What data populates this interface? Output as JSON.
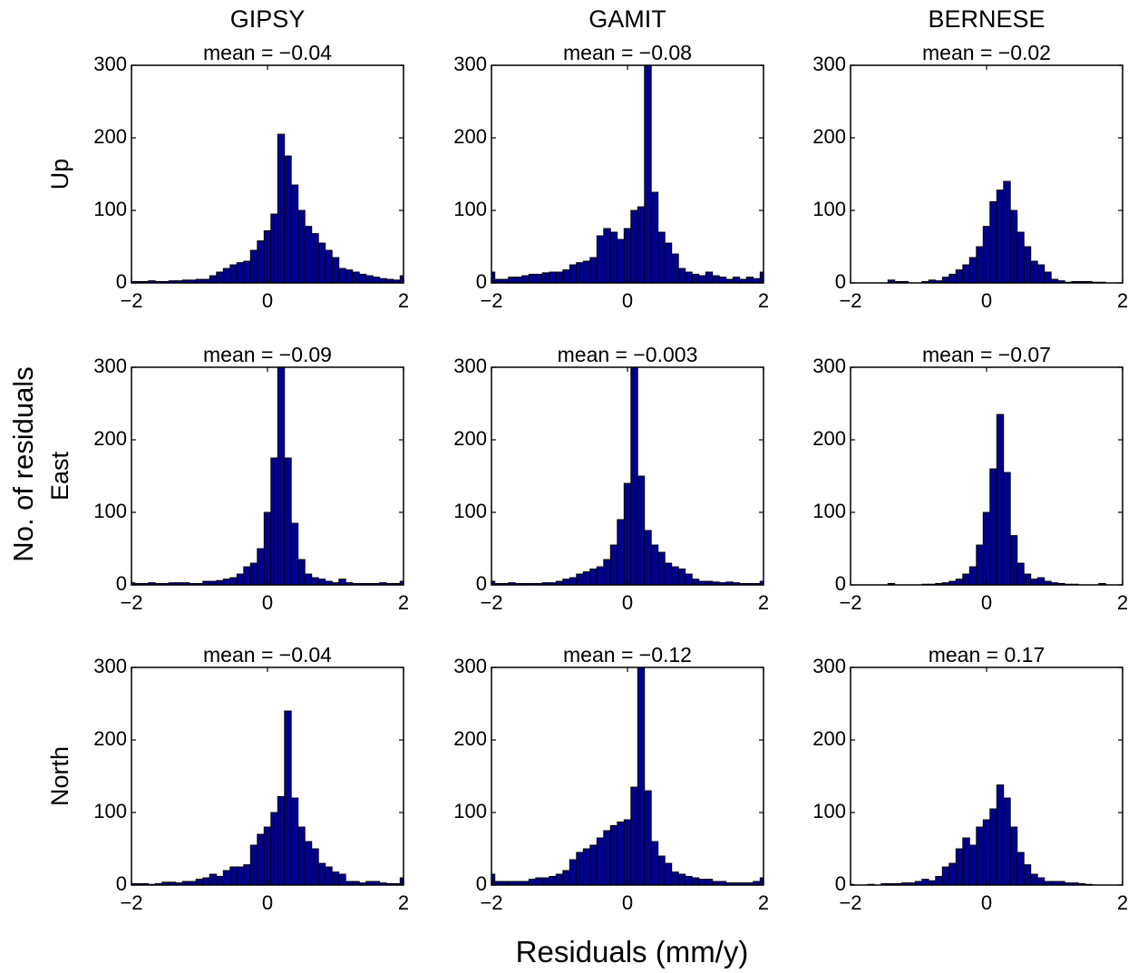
{
  "figure": {
    "column_titles": [
      "GIPSY",
      "GAMIT",
      "BERNESE"
    ],
    "row_labels": [
      "Up",
      "East",
      "North"
    ],
    "ylabel": "No. of residuals",
    "xlabel": "Residuals (mm/y)"
  },
  "colors": {
    "bar_fill": "#00008F",
    "bar_edge": "#000000",
    "axes": "#000000",
    "background": "#ffffff"
  },
  "chart_data": [
    {
      "type": "bar",
      "panel_row": "Up",
      "panel_column": "GIPSY",
      "title": "mean = −0.04",
      "bin_edges_range": [
        -2,
        2
      ],
      "bin_width": 0.1,
      "xlim": [
        -2,
        2
      ],
      "ylim": [
        0,
        300
      ],
      "xticks": [
        -2,
        0,
        2
      ],
      "xtick_labels": [
        "−2",
        "0",
        "2"
      ],
      "yticks": [
        0,
        100,
        200,
        300
      ],
      "values": [
        2,
        2,
        2,
        3,
        2,
        2,
        3,
        3,
        4,
        4,
        5,
        5,
        10,
        15,
        20,
        25,
        28,
        30,
        45,
        58,
        72,
        95,
        205,
        175,
        135,
        100,
        78,
        68,
        55,
        45,
        35,
        20,
        18,
        15,
        12,
        10,
        8,
        6,
        5,
        4,
        10
      ]
    },
    {
      "type": "bar",
      "panel_row": "Up",
      "panel_column": "GAMIT",
      "title": "mean = −0.08",
      "bin_edges_range": [
        -2,
        2
      ],
      "bin_width": 0.1,
      "xlim": [
        -2,
        2
      ],
      "ylim": [
        0,
        300
      ],
      "xticks": [
        -2,
        0,
        2
      ],
      "xtick_labels": [
        "−2",
        "0",
        "2"
      ],
      "yticks": [
        0,
        100,
        200,
        300
      ],
      "values": [
        15,
        5,
        5,
        8,
        8,
        10,
        12,
        12,
        14,
        15,
        15,
        18,
        25,
        28,
        30,
        35,
        65,
        75,
        70,
        60,
        75,
        100,
        105,
        300,
        125,
        70,
        55,
        40,
        20,
        15,
        12,
        10,
        15,
        10,
        8,
        5,
        8,
        5,
        8,
        6,
        15
      ]
    },
    {
      "type": "bar",
      "panel_row": "Up",
      "panel_column": "BERNESE",
      "title": "mean = −0.02",
      "bin_edges_range": [
        -2,
        2
      ],
      "bin_width": 0.1,
      "xlim": [
        -2,
        2
      ],
      "ylim": [
        0,
        300
      ],
      "xticks": [
        -2,
        0,
        2
      ],
      "xtick_labels": [
        "−2",
        "0",
        "2"
      ],
      "yticks": [
        0,
        100,
        200,
        300
      ],
      "values": [
        0,
        0,
        0,
        0,
        0,
        0,
        4,
        2,
        2,
        0,
        0,
        2,
        4,
        3,
        8,
        12,
        18,
        25,
        35,
        50,
        78,
        112,
        128,
        140,
        100,
        70,
        50,
        30,
        25,
        15,
        5,
        3,
        1,
        2,
        2,
        2,
        1,
        1,
        0,
        0,
        0
      ]
    },
    {
      "type": "bar",
      "panel_row": "East",
      "panel_column": "GIPSY",
      "title": "mean = −0.09",
      "bin_edges_range": [
        -2,
        2
      ],
      "bin_width": 0.1,
      "xlim": [
        -2,
        2
      ],
      "ylim": [
        0,
        300
      ],
      "xticks": [
        -2,
        0,
        2
      ],
      "xtick_labels": [
        "−2",
        "0",
        "2"
      ],
      "yticks": [
        0,
        100,
        200,
        300
      ],
      "values": [
        3,
        2,
        2,
        3,
        2,
        2,
        3,
        3,
        3,
        2,
        2,
        5,
        5,
        6,
        8,
        10,
        15,
        25,
        30,
        50,
        100,
        175,
        300,
        175,
        85,
        35,
        15,
        10,
        8,
        5,
        3,
        8,
        3,
        2,
        2,
        2,
        2,
        3,
        2,
        2,
        5
      ]
    },
    {
      "type": "bar",
      "panel_row": "East",
      "panel_column": "GAMIT",
      "title": "mean = −0.003",
      "bin_edges_range": [
        -2,
        2
      ],
      "bin_width": 0.1,
      "xlim": [
        -2,
        2
      ],
      "ylim": [
        0,
        300
      ],
      "xticks": [
        -2,
        0,
        2
      ],
      "xtick_labels": [
        "−2",
        "0",
        "2"
      ],
      "yticks": [
        0,
        100,
        200,
        300
      ],
      "values": [
        5,
        2,
        2,
        3,
        2,
        2,
        2,
        2,
        3,
        3,
        5,
        8,
        10,
        15,
        18,
        22,
        25,
        35,
        55,
        90,
        140,
        300,
        150,
        75,
        55,
        45,
        30,
        25,
        22,
        15,
        8,
        5,
        5,
        4,
        3,
        4,
        3,
        2,
        2,
        2,
        5
      ]
    },
    {
      "type": "bar",
      "panel_row": "East",
      "panel_column": "BERNESE",
      "title": "mean = −0.07",
      "bin_edges_range": [
        -2,
        2
      ],
      "bin_width": 0.1,
      "xlim": [
        -2,
        2
      ],
      "ylim": [
        0,
        300
      ],
      "xticks": [
        -2,
        0,
        2
      ],
      "xtick_labels": [
        "−2",
        "0",
        "2"
      ],
      "yticks": [
        0,
        100,
        200,
        300
      ],
      "values": [
        0,
        0,
        0,
        0,
        0,
        0,
        2,
        0,
        0,
        0,
        0,
        1,
        1,
        2,
        3,
        5,
        8,
        15,
        25,
        55,
        100,
        160,
        235,
        155,
        68,
        30,
        15,
        8,
        10,
        5,
        3,
        2,
        1,
        1,
        0,
        0,
        0,
        2,
        0,
        0,
        0
      ]
    },
    {
      "type": "bar",
      "panel_row": "North",
      "panel_column": "GIPSY",
      "title": "mean = −0.04",
      "bin_edges_range": [
        -2,
        2
      ],
      "bin_width": 0.1,
      "xlim": [
        -2,
        2
      ],
      "ylim": [
        0,
        300
      ],
      "xticks": [
        -2,
        0,
        2
      ],
      "xtick_labels": [
        "−2",
        "0",
        "2"
      ],
      "yticks": [
        0,
        100,
        200,
        300
      ],
      "values": [
        2,
        2,
        2,
        1,
        2,
        4,
        4,
        3,
        5,
        5,
        8,
        10,
        15,
        12,
        20,
        25,
        25,
        28,
        55,
        70,
        80,
        100,
        122,
        240,
        120,
        80,
        60,
        50,
        30,
        25,
        18,
        15,
        5,
        5,
        3,
        5,
        5,
        3,
        2,
        2,
        10
      ]
    },
    {
      "type": "bar",
      "panel_row": "North",
      "panel_column": "GAMIT",
      "title": "mean = −0.12",
      "bin_edges_range": [
        -2,
        2
      ],
      "bin_width": 0.1,
      "xlim": [
        -2,
        2
      ],
      "ylim": [
        0,
        300
      ],
      "xticks": [
        -2,
        0,
        2
      ],
      "xtick_labels": [
        "−2",
        "0",
        "2"
      ],
      "yticks": [
        0,
        100,
        200,
        300
      ],
      "values": [
        15,
        5,
        5,
        5,
        5,
        5,
        8,
        10,
        10,
        12,
        15,
        20,
        35,
        45,
        50,
        55,
        65,
        75,
        82,
        87,
        90,
        135,
        300,
        130,
        60,
        40,
        30,
        18,
        15,
        12,
        10,
        8,
        8,
        5,
        5,
        3,
        3,
        3,
        3,
        5,
        10
      ]
    },
    {
      "type": "bar",
      "panel_row": "North",
      "panel_column": "BERNESE",
      "title": "mean = 0.17",
      "bin_edges_range": [
        -2,
        2
      ],
      "bin_width": 0.1,
      "xlim": [
        -2,
        2
      ],
      "ylim": [
        0,
        300
      ],
      "xticks": [
        -2,
        0,
        2
      ],
      "xtick_labels": [
        "−2",
        "0",
        "2"
      ],
      "yticks": [
        0,
        100,
        200,
        300
      ],
      "values": [
        1,
        0,
        0,
        1,
        0,
        2,
        2,
        2,
        3,
        3,
        5,
        8,
        6,
        12,
        25,
        30,
        50,
        65,
        55,
        80,
        90,
        105,
        138,
        120,
        80,
        45,
        28,
        15,
        10,
        5,
        5,
        5,
        3,
        3,
        2,
        1,
        0,
        0,
        0,
        0,
        0
      ]
    }
  ]
}
